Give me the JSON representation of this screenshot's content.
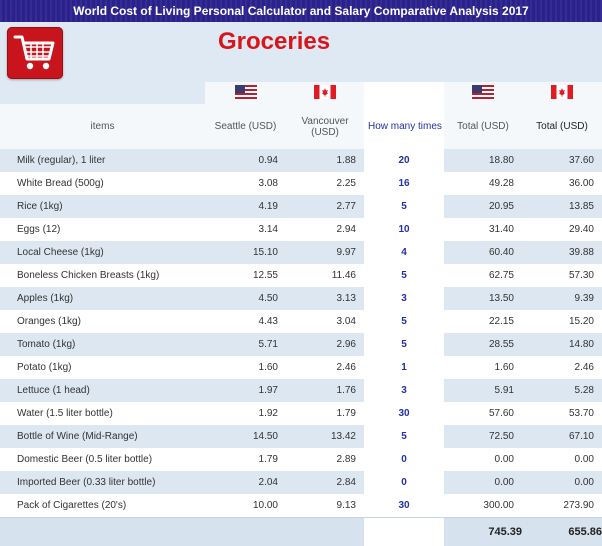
{
  "banner": {
    "title": "World Cost of Living Personal Calculator and Salary Comparative Analysis 2017"
  },
  "header": {
    "page_title": "Groceries",
    "cart_icon": "shopping-cart-icon"
  },
  "columns": {
    "items": "items",
    "seattle": "Seattle (USD)",
    "vancouver": "Vancouver (USD)",
    "times": "How many times you purchase in a",
    "total_us": "Total (USD)",
    "total_ca": "Total (USD)"
  },
  "flags": {
    "us": "us-flag-icon",
    "ca": "canada-flag-icon"
  },
  "rows": [
    {
      "item": "Milk (regular), 1 liter",
      "seattle": "0.94",
      "vancouver": "1.88",
      "times": "20",
      "total_us": "18.80",
      "total_ca": "37.60"
    },
    {
      "item": "White Bread (500g)",
      "seattle": "3.08",
      "vancouver": "2.25",
      "times": "16",
      "total_us": "49.28",
      "total_ca": "36.00"
    },
    {
      "item": "Rice (1kg)",
      "seattle": "4.19",
      "vancouver": "2.77",
      "times": "5",
      "total_us": "20.95",
      "total_ca": "13.85"
    },
    {
      "item": "Eggs (12)",
      "seattle": "3.14",
      "vancouver": "2.94",
      "times": "10",
      "total_us": "31.40",
      "total_ca": "29.40"
    },
    {
      "item": "Local Cheese (1kg)",
      "seattle": "15.10",
      "vancouver": "9.97",
      "times": "4",
      "total_us": "60.40",
      "total_ca": "39.88"
    },
    {
      "item": "Boneless Chicken Breasts (1kg)",
      "seattle": "12.55",
      "vancouver": "11.46",
      "times": "5",
      "total_us": "62.75",
      "total_ca": "57.30"
    },
    {
      "item": "Apples (1kg)",
      "seattle": "4.50",
      "vancouver": "3.13",
      "times": "3",
      "total_us": "13.50",
      "total_ca": "9.39"
    },
    {
      "item": "Oranges (1kg)",
      "seattle": "4.43",
      "vancouver": "3.04",
      "times": "5",
      "total_us": "22.15",
      "total_ca": "15.20"
    },
    {
      "item": "Tomato (1kg)",
      "seattle": "5.71",
      "vancouver": "2.96",
      "times": "5",
      "total_us": "28.55",
      "total_ca": "14.80"
    },
    {
      "item": "Potato (1kg)",
      "seattle": "1.60",
      "vancouver": "2.46",
      "times": "1",
      "total_us": "1.60",
      "total_ca": "2.46"
    },
    {
      "item": "Lettuce (1 head)",
      "seattle": "1.97",
      "vancouver": "1.76",
      "times": "3",
      "total_us": "5.91",
      "total_ca": "5.28"
    },
    {
      "item": "Water (1.5 liter bottle)",
      "seattle": "1.92",
      "vancouver": "1.79",
      "times": "30",
      "total_us": "57.60",
      "total_ca": "53.70"
    },
    {
      "item": "Bottle of Wine (Mid-Range)",
      "seattle": "14.50",
      "vancouver": "13.42",
      "times": "5",
      "total_us": "72.50",
      "total_ca": "67.10"
    },
    {
      "item": "Domestic Beer (0.5 liter bottle)",
      "seattle": "1.79",
      "vancouver": "2.89",
      "times": "0",
      "total_us": "0.00",
      "total_ca": "0.00"
    },
    {
      "item": "Imported Beer (0.33 liter bottle)",
      "seattle": "2.04",
      "vancouver": "2.84",
      "times": "0",
      "total_us": "0.00",
      "total_ca": "0.00"
    },
    {
      "item": "Pack of Cigarettes (20's)",
      "seattle": "10.00",
      "vancouver": "9.13",
      "times": "30",
      "total_us": "300.00",
      "total_ca": "273.90"
    }
  ],
  "totals": {
    "us": "745.39",
    "ca": "655.86"
  }
}
